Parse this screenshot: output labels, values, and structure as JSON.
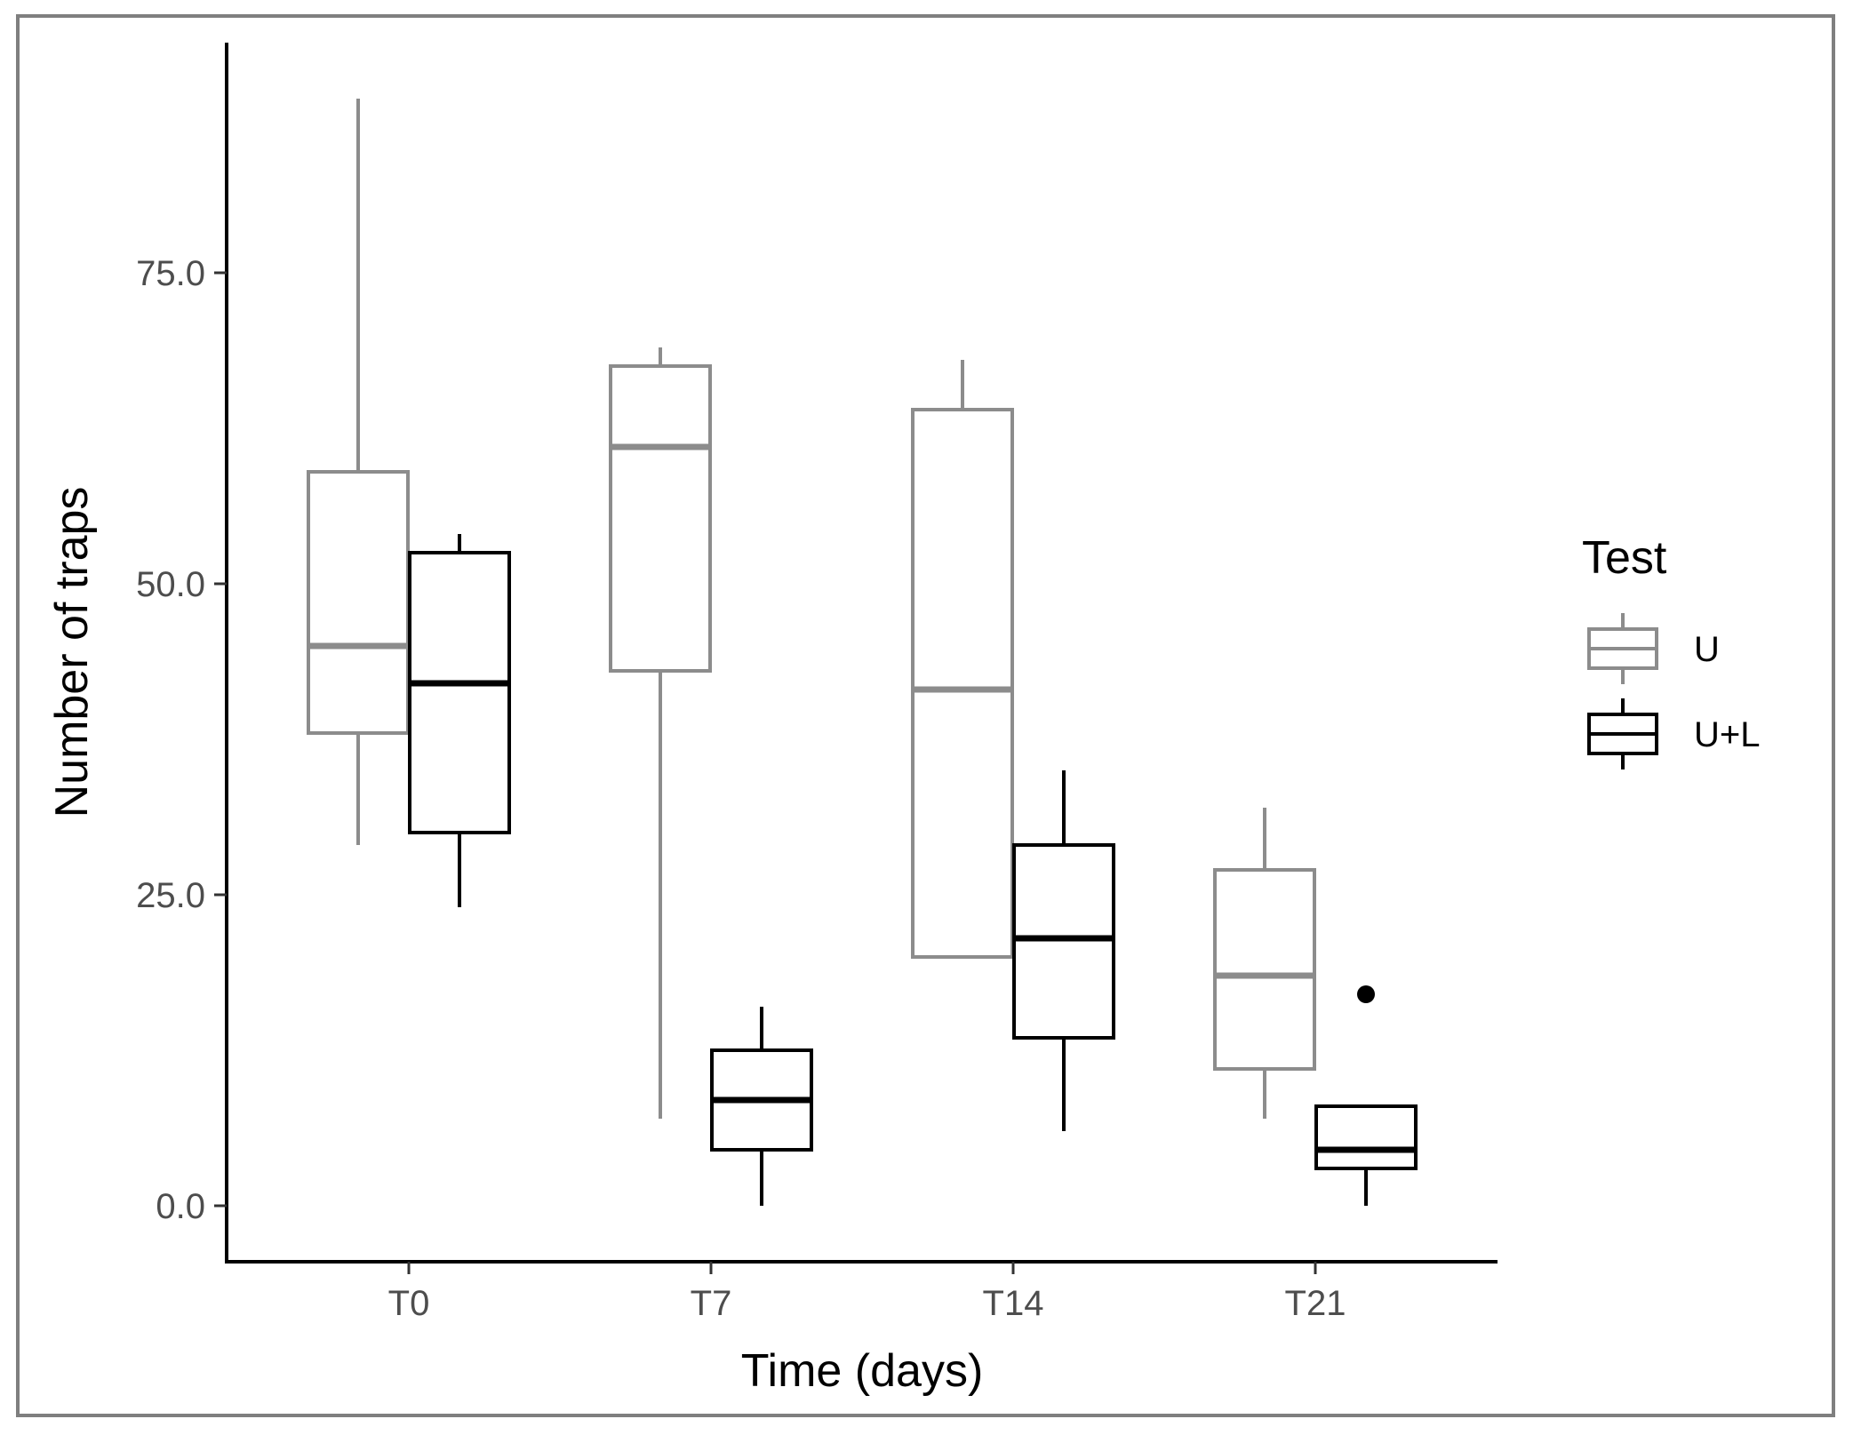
{
  "chart_data": {
    "type": "boxplot",
    "title": "",
    "xlabel": "Time (days)",
    "ylabel": "Number of traps",
    "categories": [
      "T0",
      "T7",
      "T14",
      "T21"
    ],
    "ylim": [
      -4.5,
      93.5
    ],
    "yticks": [
      0,
      25,
      50,
      75
    ],
    "ytick_labels": [
      "0.0",
      "25.0",
      "50.0",
      "75.0"
    ],
    "legend": {
      "title": "Test",
      "position": "right",
      "entries": [
        {
          "label": "U",
          "color": "#8c8c8c"
        },
        {
          "label": "U+L",
          "color": "#000000"
        }
      ]
    },
    "series": [
      {
        "name": "U",
        "color": "#8c8c8c",
        "boxes": [
          {
            "category": "T0",
            "min": 29,
            "q1": 38,
            "median": 45,
            "q3": 59,
            "max": 89,
            "outliers": []
          },
          {
            "category": "T7",
            "min": 7,
            "q1": 43,
            "median": 61,
            "q3": 67.5,
            "max": 69,
            "outliers": []
          },
          {
            "category": "T14",
            "min": 20,
            "q1": 20,
            "median": 41.5,
            "q3": 64,
            "max": 68,
            "outliers": []
          },
          {
            "category": "T21",
            "min": 7,
            "q1": 11,
            "median": 18.5,
            "q3": 27,
            "max": 32,
            "outliers": []
          }
        ]
      },
      {
        "name": "U+L",
        "color": "#000000",
        "boxes": [
          {
            "category": "T0",
            "min": 24,
            "q1": 30,
            "median": 42,
            "q3": 52.5,
            "max": 54,
            "outliers": []
          },
          {
            "category": "T7",
            "min": 0,
            "q1": 4.5,
            "median": 8.5,
            "q3": 12.5,
            "max": 16,
            "outliers": []
          },
          {
            "category": "T14",
            "min": 6,
            "q1": 13.5,
            "median": 21.5,
            "q3": 29,
            "max": 35,
            "outliers": []
          },
          {
            "category": "T21",
            "min": 0,
            "q1": 3,
            "median": 4.5,
            "q3": 8,
            "max": 8,
            "outliers": [
              17
            ]
          }
        ]
      }
    ]
  }
}
